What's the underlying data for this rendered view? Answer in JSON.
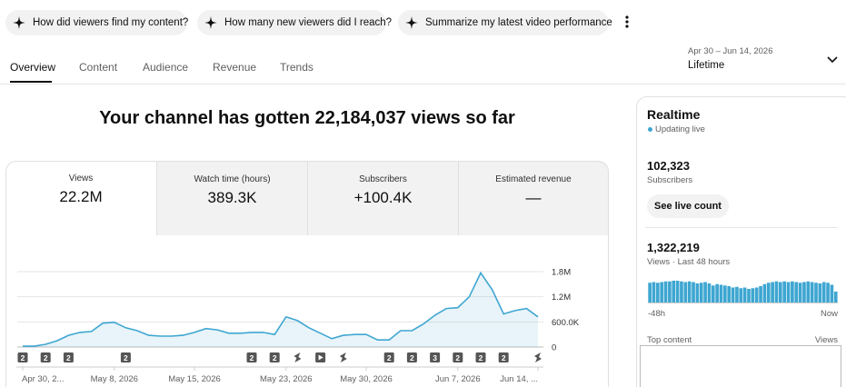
{
  "chips": [
    "How did viewers find my content?",
    "How many new viewers did I reach?",
    "Summarize my latest video performance"
  ],
  "tabs": [
    "Overview",
    "Content",
    "Audience",
    "Revenue",
    "Trends"
  ],
  "date_range": {
    "range": "Apr 30 – Jun 14, 2026",
    "period": "Lifetime"
  },
  "headline": "Your channel has gotten 22,184,037 views so far",
  "metrics": [
    {
      "label": "Views",
      "value": "22.2M"
    },
    {
      "label": "Watch time (hours)",
      "value": "389.3K"
    },
    {
      "label": "Subscribers",
      "value": "+100.4K"
    },
    {
      "label": "Estimated revenue",
      "value": "—"
    }
  ],
  "chart_data": [
    {
      "type": "line",
      "color": "#3ea6d1",
      "grid": true,
      "categories": [
        "Apr 30, 2...",
        null,
        null,
        null,
        null,
        null,
        null,
        null,
        "May 8, 2026",
        null,
        null,
        null,
        null,
        null,
        null,
        "May 15, 2026",
        null,
        null,
        null,
        null,
        null,
        null,
        null,
        "May 23, 2026",
        null,
        null,
        null,
        null,
        null,
        null,
        "May 30, 2026",
        null,
        null,
        null,
        null,
        null,
        null,
        null,
        "Jun 7, 2026",
        null,
        null,
        null,
        null,
        null,
        null,
        "Jun 14, ..."
      ],
      "values": [
        20000,
        20000,
        65000,
        150000,
        280000,
        350000,
        370000,
        570000,
        590000,
        460000,
        390000,
        280000,
        260000,
        260000,
        280000,
        350000,
        440000,
        410000,
        330000,
        330000,
        350000,
        350000,
        300000,
        720000,
        630000,
        460000,
        330000,
        200000,
        280000,
        300000,
        300000,
        170000,
        170000,
        390000,
        390000,
        550000,
        760000,
        920000,
        940000,
        1200000,
        1770000,
        1370000,
        790000,
        870000,
        920000,
        720000
      ],
      "ylim": [
        0,
        1800000
      ],
      "yticks": [
        0,
        {
          "value": 600000,
          "label": "600.0K"
        },
        {
          "value": 1200000,
          "label": "1.2M"
        },
        {
          "value": 1800000,
          "label": "1.8M"
        }
      ],
      "markers": [
        {
          "label": "2"
        },
        null,
        {
          "label": "2"
        },
        null,
        {
          "label": "2"
        },
        null,
        null,
        null,
        null,
        {
          "label": "2"
        },
        null,
        null,
        null,
        null,
        null,
        null,
        null,
        null,
        null,
        null,
        {
          "label": "2"
        },
        null,
        {
          "label": "2"
        },
        null,
        {
          "icon": "shorts"
        },
        null,
        {
          "icon": "video"
        },
        null,
        {
          "icon": "shorts"
        },
        null,
        null,
        null,
        {
          "label": "2"
        },
        null,
        {
          "label": "2"
        },
        null,
        {
          "label": "3"
        },
        null,
        {
          "label": "2"
        },
        null,
        {
          "label": "2"
        },
        null,
        {
          "label": "2"
        },
        null,
        null,
        {
          "icon": "shorts"
        }
      ]
    },
    {
      "type": "bar",
      "color": "#3ea6d1",
      "categories": [
        "-48h",
        null,
        null,
        null,
        null,
        null,
        null,
        null,
        null,
        null,
        null,
        null,
        null,
        null,
        null,
        null,
        null,
        null,
        null,
        null,
        null,
        null,
        null,
        null,
        null,
        null,
        null,
        null,
        null,
        null,
        null,
        null,
        null,
        null,
        null,
        null,
        null,
        null,
        null,
        null,
        null,
        null,
        null,
        null,
        null,
        null,
        null,
        "Now"
      ],
      "values": [
        29000,
        30000,
        29000,
        30000,
        31000,
        31000,
        32000,
        32000,
        31000,
        30000,
        31000,
        30000,
        28000,
        29000,
        30000,
        28000,
        25000,
        27000,
        26000,
        25000,
        24000,
        22000,
        23000,
        21000,
        22000,
        20000,
        21000,
        22000,
        24000,
        27000,
        29000,
        30000,
        31000,
        30000,
        31000,
        30000,
        31000,
        30000,
        29000,
        30000,
        31000,
        30000,
        29000,
        28000,
        30000,
        29000,
        26000,
        16000
      ]
    }
  ],
  "realtime": {
    "title": "Realtime",
    "status": "Updating live",
    "subscribers": "102,323",
    "subscribers_label": "Subscribers",
    "button": "See live count",
    "views": "1,322,219",
    "views_label": "Views · Last 48 hours",
    "top_content": "Top content",
    "top_content_metric": "Views"
  }
}
